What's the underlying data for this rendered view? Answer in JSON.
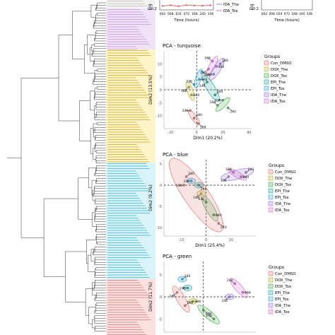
{
  "chart_data": [
    {
      "panel": "top-left-eigengene",
      "type": "line",
      "xlabel": "Time (hours)",
      "ylabel": "Eig",
      "x_ticks": [
        "002",
        "008",
        "024",
        "072",
        "168",
        "240",
        "336"
      ],
      "y_ticks": [
        "-0.2"
      ],
      "legend": [
        "IDA_The",
        "IDA_Tox"
      ],
      "series": [
        {
          "name": "IDA_Tox",
          "color": "#e05a5a",
          "values": [
            -0.08,
            -0.05,
            -0.09,
            -0.04,
            -0.06,
            -0.07,
            -0.05
          ]
        }
      ]
    },
    {
      "panel": "top-right-eigengene",
      "type": "line",
      "xlabel": "Time (hours)",
      "ylabel": "Eig",
      "x_ticks": [
        "002",
        "008",
        "024",
        "072",
        "168",
        "240",
        "336"
      ],
      "y_ticks": [
        "-0.2"
      ],
      "series": []
    },
    {
      "panel": "pca-turquoise",
      "type": "scatter",
      "title": "PCA - turquoise",
      "xlabel": "Dim1 (20.2%)",
      "ylabel": "Dim2 (13.5%)",
      "xlim": [
        -25,
        42
      ],
      "ylim": [
        -15,
        15
      ],
      "x_ticks": [
        -20,
        0,
        20,
        40
      ],
      "y_ticks": [
        10,
        5,
        0,
        -5,
        -10
      ],
      "points": [
        {
          "group": "IDA_Tox",
          "x": 12,
          "y": 11,
          "label": "168"
        },
        {
          "group": "IDA_Tox",
          "x": 15,
          "y": 9,
          "label": "336"
        },
        {
          "group": "IDA_Tox",
          "x": 9,
          "y": 8,
          "label": "240"
        },
        {
          "group": "IDA_The",
          "x": 18,
          "y": 10,
          "label": "168"
        },
        {
          "group": "IDA_The",
          "x": 13,
          "y": 6,
          "label": "240"
        },
        {
          "group": "EPI_Tox",
          "x": 4,
          "y": 7,
          "label": "240"
        },
        {
          "group": "EPI_Tox",
          "x": -2,
          "y": 2,
          "label": "336"
        },
        {
          "group": "EPI_Tox",
          "x": 2,
          "y": 4,
          "label": "168"
        },
        {
          "group": "EPI_The",
          "x": 8,
          "y": 3,
          "label": "336"
        },
        {
          "group": "EPI_The",
          "x": 14,
          "y": -2,
          "label": "240"
        },
        {
          "group": "DOX_Tox",
          "x": 20,
          "y": -4,
          "label": "336"
        },
        {
          "group": "DOX_Tox",
          "x": 24,
          "y": -7,
          "label": "240"
        },
        {
          "group": "DOX_Tox",
          "x": 16,
          "y": -6,
          "label": "168"
        },
        {
          "group": "DOX_The",
          "x": -4,
          "y": -2,
          "label": "240"
        },
        {
          "group": "DOX_The",
          "x": -6,
          "y": 1,
          "label": "168"
        },
        {
          "group": "Con_DMSO",
          "x": -2,
          "y": -11,
          "label": "240"
        },
        {
          "group": "Con_DMSO",
          "x": -5,
          "y": -8,
          "label": "336"
        },
        {
          "group": "Con_DMSO",
          "x": 1,
          "y": -13,
          "label": "168"
        }
      ],
      "legend_title": "Groups",
      "legend": [
        "Con_DMSO",
        "DOX_The",
        "DOX_Tox",
        "EPI_The",
        "EPI_Tox",
        "IDA_The",
        "IDA_Tox"
      ]
    },
    {
      "panel": "pca-blue",
      "type": "scatter",
      "title": "PCA - blue",
      "xlabel": "Dim1 (25.4%)",
      "ylabel": "Dim2 (9.2%)",
      "xlim": [
        -17,
        20
      ],
      "ylim": [
        -12,
        6
      ],
      "x_ticks": [
        -10,
        0,
        10
      ],
      "y_ticks": [
        5,
        0,
        -5,
        -10
      ],
      "points": [
        {
          "group": "IDA_Tox",
          "x": 11,
          "y": 3,
          "label": "168"
        },
        {
          "group": "IDA_Tox",
          "x": 14,
          "y": 2,
          "label": "240"
        },
        {
          "group": "IDA_The",
          "x": 9,
          "y": 2,
          "label": "336"
        },
        {
          "group": "IDA_The",
          "x": 16,
          "y": 3,
          "label": "240"
        },
        {
          "group": "EPI_Tox",
          "x": -6,
          "y": 1,
          "label": "336"
        },
        {
          "group": "EPI_The",
          "x": -3,
          "y": 0,
          "label": "240"
        },
        {
          "group": "DOX_Tox",
          "x": 0,
          "y": -4,
          "label": "336"
        },
        {
          "group": "DOX_Tox",
          "x": 3,
          "y": -7,
          "label": "240"
        },
        {
          "group": "DOX_The",
          "x": -2,
          "y": -2,
          "label": "168"
        },
        {
          "group": "Con_DMSO",
          "x": -8,
          "y": 2,
          "label": "240"
        },
        {
          "group": "Con_DMSO",
          "x": -9,
          "y": 0,
          "label": "336"
        },
        {
          "group": "Con_DMSO",
          "x": 5,
          "y": -9,
          "label": "240"
        }
      ],
      "legend_title": "Groups",
      "legend": [
        "Con_DMSO",
        "DOX_The",
        "DOX_Tox",
        "EPI_The",
        "EPI_Tox",
        "IDA_The",
        "IDA_Tox"
      ]
    },
    {
      "panel": "pca-green",
      "type": "scatter",
      "title": "PCA - green",
      "xlabel": "",
      "ylabel": "Dim2 (11.7%)",
      "xlim": [
        -15,
        20
      ],
      "ylim": [
        -8,
        8
      ],
      "x_ticks": [],
      "y_ticks": [
        5,
        0,
        -5
      ],
      "points": [
        {
          "group": "IDA_Tox",
          "x": 12,
          "y": 3,
          "label": "240"
        },
        {
          "group": "IDA_Tox",
          "x": 15,
          "y": 1,
          "label": "168"
        },
        {
          "group": "IDA_The",
          "x": 10,
          "y": 0,
          "label": "336"
        },
        {
          "group": "EPI_Tox",
          "x": -8,
          "y": 4,
          "label": "336"
        },
        {
          "group": "EPI_The",
          "x": -6,
          "y": 2,
          "label": "240"
        },
        {
          "group": "DOX_Tox",
          "x": 0,
          "y": -3,
          "label": "168"
        },
        {
          "group": "DOX_Tox",
          "x": 4,
          "y": -5,
          "label": "240"
        },
        {
          "group": "DOX_The",
          "x": -4,
          "y": -1,
          "label": "336"
        },
        {
          "group": "Con_DMSO",
          "x": -10,
          "y": 1,
          "label": "240"
        },
        {
          "group": "Con_DMSO",
          "x": -7,
          "y": -2,
          "label": "168"
        }
      ],
      "legend_title": "Groups",
      "legend": [
        "Con_DMSO",
        "DOX_The",
        "DOX_Tox",
        "EPI_The",
        "EPI_Tox",
        "IDA_The",
        "IDA_Tox"
      ]
    }
  ],
  "colors": {
    "Con_DMSO": "#e07b7b",
    "DOX_The": "#b6b43a",
    "DOX_Tox": "#4caf50",
    "EPI_The": "#27a3a0",
    "EPI_Tox": "#3aa8d8",
    "IDA_The": "#9b7be0",
    "IDA_Tox": "#d96fd1",
    "module_turquoise": "#40e0d0",
    "module_blue": "#6f9fe8",
    "module_green": "#7fd67f"
  }
}
